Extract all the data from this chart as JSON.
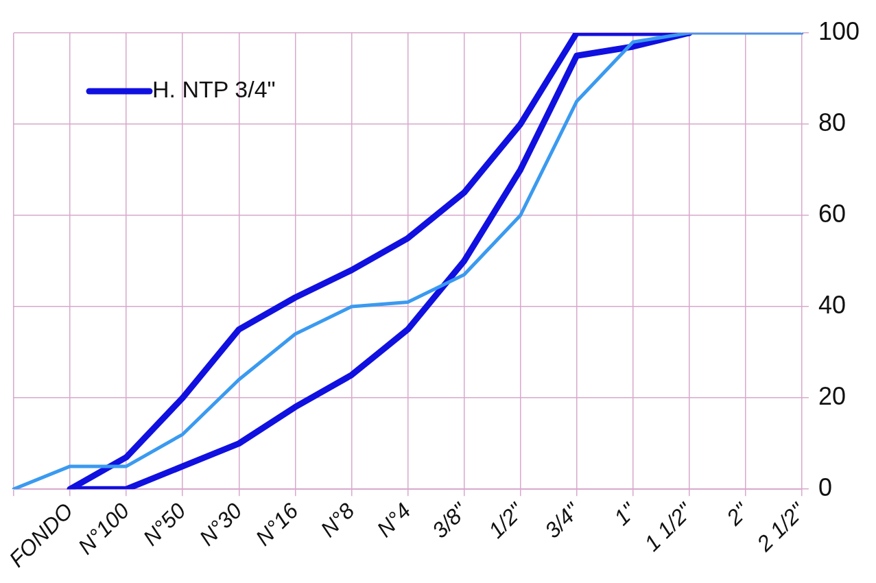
{
  "chart_data": {
    "type": "line",
    "categories": [
      null,
      "FONDO",
      "N°100",
      "N°50",
      "N°30",
      "N°16",
      "N°8",
      "N°4",
      "3/8\"",
      "1/2\"",
      "3/4\"",
      "1\"",
      "1 1/2\"",
      "2\"",
      "2 1/2\""
    ],
    "series": [
      {
        "name": "H. NTP 3/4\"",
        "color": "#1010e0",
        "values": [
          null,
          0,
          7,
          20,
          35,
          42,
          48,
          55,
          65,
          80,
          100,
          100,
          100,
          null,
          null
        ]
      },
      {
        "color": "#1010e0",
        "values": [
          null,
          0,
          0,
          5,
          10,
          18,
          25,
          35,
          50,
          70,
          95,
          97,
          100,
          null,
          null
        ]
      },
      {
        "color": "#3a9af0",
        "values": [
          0,
          5,
          5,
          12,
          24,
          34,
          40,
          41,
          47,
          60,
          85,
          98,
          100,
          100,
          100
        ]
      }
    ],
    "ylim": [
      0,
      100
    ],
    "yticks": [
      0,
      20,
      40,
      60,
      80,
      100
    ],
    "grid": true,
    "legend": "top left",
    "marker": "none",
    "line_style": "solid"
  }
}
